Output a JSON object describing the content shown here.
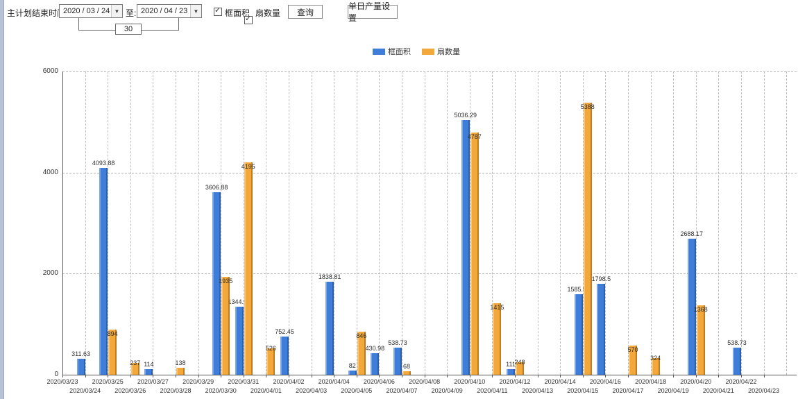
{
  "toolbar": {
    "label_main": "主计划结束时间:",
    "date_from": "2020 / 03 / 24",
    "to_label": "至:",
    "date_to": "2020 / 04 / 23",
    "interval_days": "30",
    "checkbox_frame_area": "框面积",
    "checkbox_sash_count": "扇数量",
    "check_glyph": "✓",
    "arrow_glyph": "▼",
    "query_button": "查询",
    "daily_output_button": "单日产量设置"
  },
  "legend": {
    "items": [
      {
        "label": "框面积",
        "color": "#3e7ed8"
      },
      {
        "label": "扇数量",
        "color": "#f2a83a"
      }
    ]
  },
  "colors": {
    "series_blue": "#3e7ed8",
    "series_orange": "#f2a83a",
    "axis": "#555555",
    "grid": "#bdbdbd"
  },
  "chart_data": {
    "type": "bar",
    "title": "",
    "xlabel": "",
    "ylabel": "",
    "ylim": [
      0,
      6000
    ],
    "yticks": [
      0,
      2000,
      4000,
      6000
    ],
    "grid": true,
    "legend_position": "top",
    "categories": [
      "2020/03/23",
      "2020/03/24",
      "2020/03/25",
      "2020/03/26",
      "2020/03/27",
      "2020/03/28",
      "2020/03/29",
      "2020/03/30",
      "2020/03/31",
      "2020/04/01",
      "2020/04/02",
      "2020/04/03",
      "2020/04/04",
      "2020/04/05",
      "2020/04/06",
      "2020/04/07",
      "2020/04/08",
      "2020/04/09",
      "2020/04/10",
      "2020/04/11",
      "2020/04/12",
      "2020/04/13",
      "2020/04/14",
      "2020/04/15",
      "2020/04/16",
      "2020/04/17",
      "2020/04/18",
      "2020/04/19",
      "2020/04/20",
      "2020/04/21",
      "2020/04/22",
      "2020/04/23"
    ],
    "series": [
      {
        "name": "框面积",
        "color": "#3e7ed8",
        "values": [
          null,
          311.63,
          4093.88,
          null,
          114,
          null,
          null,
          3606.88,
          1344.95,
          null,
          752.45,
          null,
          1838.81,
          82,
          430.98,
          538.73,
          null,
          null,
          5036.29,
          null,
          111,
          null,
          null,
          1585.96,
          1798.5,
          null,
          null,
          null,
          2688.17,
          null,
          538.73,
          null
        ]
      },
      {
        "name": "扇数量",
        "color": "#f2a83a",
        "values": [
          null,
          null,
          894,
          237,
          null,
          138,
          null,
          1935,
          4195,
          526,
          null,
          null,
          null,
          846,
          null,
          68,
          null,
          null,
          4787,
          1415,
          248,
          null,
          null,
          5388,
          null,
          570,
          324,
          null,
          1368,
          null,
          null,
          null
        ]
      }
    ]
  }
}
